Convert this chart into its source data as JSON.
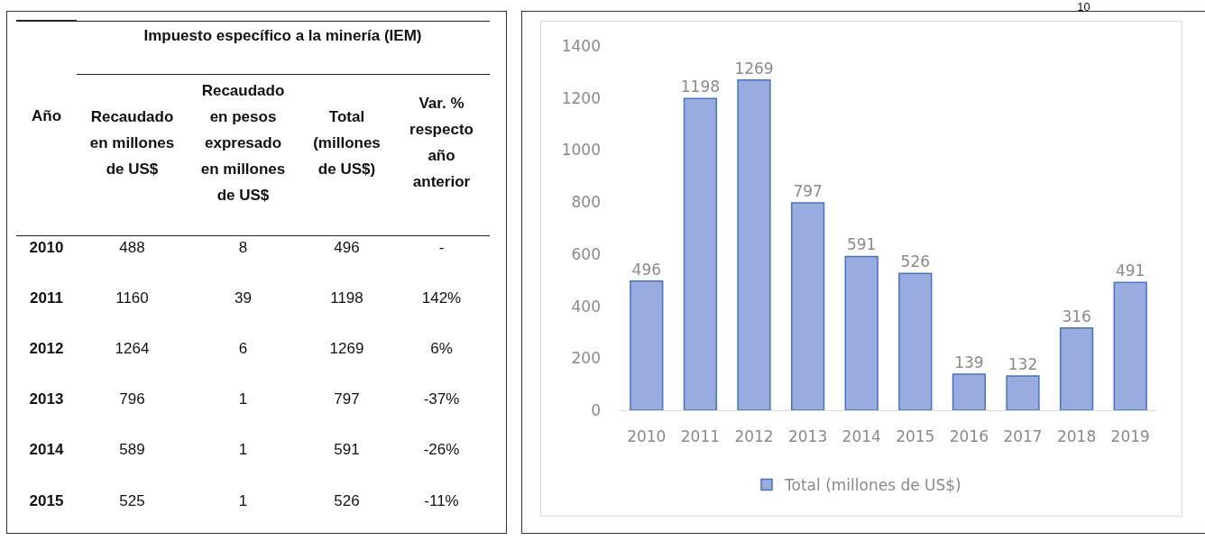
{
  "chart_data": [
    {
      "type": "heatmap",
      "title": "Impuesto específico a la minería (IEM)",
      "ylabel": "Año",
      "categories": [
        "Recaudado en millones de US$",
        "Recaudado en pesos expresado en millones de US$",
        "Total (millones de US$)",
        "Var. % respecto año anterior"
      ],
      "y_categories": [
        "2010",
        "2011",
        "2012",
        "2013",
        "2014",
        "2015"
      ],
      "cells": [
        [
          488,
          8,
          496,
          null
        ],
        [
          1160,
          39,
          1198,
          142
        ],
        [
          1264,
          6,
          1269,
          6
        ],
        [
          796,
          1,
          797,
          -37
        ],
        [
          589,
          1,
          591,
          -26
        ],
        [
          525,
          1,
          526,
          -11
        ]
      ],
      "cell_labels": [
        [
          "488",
          "8",
          "496",
          "-"
        ],
        [
          "1160",
          "39",
          "1198",
          "142%"
        ],
        [
          "1264",
          "6",
          "1269",
          "6%"
        ],
        [
          "796",
          "1",
          "797",
          "-37%"
        ],
        [
          "589",
          "1",
          "591",
          "-26%"
        ],
        [
          "525",
          "1",
          "526",
          "-11%"
        ]
      ]
    },
    {
      "type": "bar",
      "categories": [
        "2010",
        "2011",
        "2012",
        "2013",
        "2014",
        "2015",
        "2016",
        "2017",
        "2018",
        "2019"
      ],
      "series": [
        {
          "name": "Total (millones de US$)",
          "color": "#98acdf",
          "values": [
            496,
            1198,
            1269,
            797,
            591,
            526,
            139,
            132,
            316,
            491
          ]
        }
      ],
      "ylim": [
        0,
        1400
      ],
      "yticks": [
        0,
        200,
        400,
        600,
        800,
        1000,
        1200,
        1400
      ],
      "data_labels": true,
      "legend": "bottom",
      "grid": false,
      "annotations": [
        "10"
      ]
    }
  ]
}
